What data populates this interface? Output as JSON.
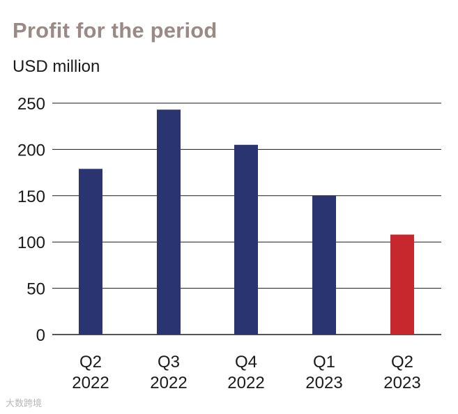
{
  "colors": {
    "title": "#9a8a86",
    "bar_default": "#2a3470",
    "bar_highlight": "#c6282d",
    "grid": "#1a1a1a",
    "text": "#1a1a1a"
  },
  "chart_data": {
    "type": "bar",
    "title": "Profit for the period",
    "ylabel": "USD million",
    "xlabel": "",
    "categories": [
      [
        "Q2",
        "2022"
      ],
      [
        "Q3",
        "2022"
      ],
      [
        "Q4",
        "2022"
      ],
      [
        "Q1",
        "2023"
      ],
      [
        "Q2",
        "2023"
      ]
    ],
    "values": [
      179,
      243,
      205,
      150,
      108
    ],
    "highlight_index": 4,
    "ylim": [
      0,
      250
    ],
    "yticks": [
      0,
      50,
      100,
      150,
      200,
      250
    ],
    "grid": true,
    "legend": "none"
  },
  "watermark": "大数跨境"
}
